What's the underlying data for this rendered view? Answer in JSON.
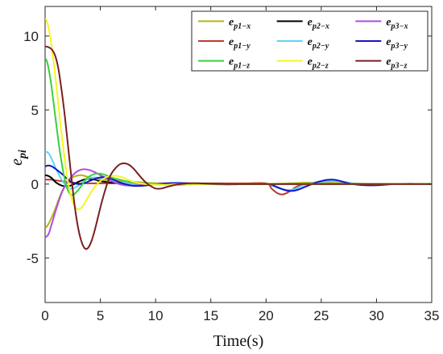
{
  "chart_data": {
    "type": "line",
    "title": "",
    "xlabel": "Time(s)",
    "ylabel": "e_pi",
    "ylabel_parts": {
      "base": "e",
      "sub": "pi"
    },
    "xlim": [
      0,
      35
    ],
    "ylim": [
      -8,
      12
    ],
    "xticks": [
      0,
      5,
      10,
      15,
      20,
      25,
      30,
      35
    ],
    "yticks": [
      -5,
      0,
      5,
      10
    ],
    "grid": false,
    "legend_position": "top-right",
    "legend_columns": 3,
    "series": [
      {
        "name": "e_p1-x",
        "label_base": "e",
        "label_sub": "p1−x",
        "color": "#b5b50f",
        "x": [
          0,
          0.3,
          0.8,
          1.3,
          1.8,
          2.3,
          2.8,
          3.3,
          3.8,
          4.3,
          5,
          6,
          7,
          8,
          9,
          10,
          11,
          12,
          13,
          15,
          18,
          20,
          21,
          22,
          23,
          24,
          25,
          26,
          27,
          28,
          30,
          32,
          35
        ],
        "y": [
          -3.0,
          -2.7,
          -1.9,
          -0.9,
          -0.1,
          0.35,
          0.55,
          0.6,
          0.5,
          0.4,
          0.3,
          0.25,
          0.2,
          0.15,
          0.1,
          0.05,
          0.03,
          0.02,
          0.01,
          0,
          0,
          0,
          0.02,
          0.05,
          0.08,
          0.1,
          0.1,
          0.08,
          0.05,
          0.03,
          0.01,
          0,
          0
        ]
      },
      {
        "name": "e_p1-y",
        "label_base": "e",
        "label_sub": "p1−y",
        "color": "#c0392b",
        "x": [
          0,
          0.5,
          1,
          1.5,
          2,
          2.5,
          3,
          3.5,
          4,
          5,
          6,
          7,
          8,
          9,
          10,
          12,
          15,
          18,
          20,
          20.5,
          21,
          21.5,
          22,
          22.5,
          23,
          24,
          25,
          26,
          27,
          28,
          30,
          32,
          35
        ],
        "y": [
          0.3,
          0.3,
          0.25,
          0.2,
          0.15,
          0.1,
          0.05,
          0.05,
          0.05,
          0.05,
          0.05,
          0.05,
          0.05,
          0.05,
          0.05,
          0.05,
          0.05,
          0.05,
          0.05,
          -0.3,
          -0.6,
          -0.7,
          -0.55,
          -0.3,
          -0.1,
          0.05,
          0.1,
          0.08,
          0.05,
          0.02,
          0,
          0,
          0
        ]
      },
      {
        "name": "e_p1-z",
        "label_base": "e",
        "label_sub": "p1−z",
        "color": "#3ccf3c",
        "x": [
          0,
          0.2,
          0.5,
          0.8,
          1.1,
          1.4,
          1.7,
          2,
          2.3,
          2.6,
          3,
          3.4,
          3.8,
          4.2,
          4.6,
          5,
          5.5,
          6,
          6.5,
          7,
          8,
          9,
          10,
          11,
          12,
          13,
          15,
          18,
          20,
          22,
          25,
          30,
          35
        ],
        "y": [
          8.5,
          8.2,
          7.0,
          5.3,
          3.5,
          1.9,
          0.6,
          -0.3,
          -0.7,
          -0.7,
          -0.4,
          0.0,
          0.4,
          0.6,
          0.7,
          0.7,
          0.6,
          0.45,
          0.35,
          0.25,
          0.1,
          0.05,
          0.0,
          -0.05,
          -0.05,
          -0.02,
          0,
          0,
          0,
          0,
          0,
          0,
          0
        ]
      },
      {
        "name": "e_p2-x",
        "label_base": "e",
        "label_sub": "p2−x",
        "color": "#000000",
        "x": [
          0,
          0.3,
          0.6,
          1,
          1.5,
          2,
          2.5,
          3,
          3.5,
          4,
          4.5,
          5,
          6,
          7,
          8,
          9,
          10,
          12,
          15,
          20,
          25,
          30,
          35
        ],
        "y": [
          0.6,
          0.55,
          0.4,
          0.1,
          -0.1,
          -0.15,
          -0.05,
          0.15,
          0.3,
          0.35,
          0.3,
          0.2,
          0.1,
          0.05,
          0,
          -0.03,
          -0.03,
          0,
          0,
          0,
          0,
          0,
          0
        ]
      },
      {
        "name": "e_p2-y",
        "label_base": "e",
        "label_sub": "p2−y",
        "color": "#5cd6f5",
        "x": [
          0,
          0.3,
          0.6,
          1,
          1.5,
          2,
          2.5,
          3,
          3.5,
          4,
          4.5,
          5,
          6,
          7,
          8,
          9,
          10,
          12,
          15,
          18,
          20,
          20.5,
          21,
          21.5,
          22,
          22.5,
          23,
          23.5,
          24,
          25,
          26,
          27,
          28,
          29,
          30,
          32,
          35
        ],
        "y": [
          2.2,
          2.1,
          1.7,
          1.0,
          0.3,
          -0.2,
          -0.3,
          -0.1,
          0.2,
          0.4,
          0.45,
          0.4,
          0.25,
          0.1,
          0,
          -0.05,
          -0.03,
          0,
          0,
          0,
          0,
          -0.1,
          -0.25,
          -0.35,
          -0.4,
          -0.35,
          -0.2,
          -0.05,
          0.05,
          0.15,
          0.2,
          0.15,
          0.05,
          0,
          -0.03,
          0,
          0
        ]
      },
      {
        "name": "e_p2-z",
        "label_base": "e",
        "label_sub": "p2−z",
        "color": "#f5f51f",
        "x": [
          0,
          0.2,
          0.5,
          0.8,
          1.1,
          1.4,
          1.7,
          2,
          2.3,
          2.6,
          3,
          3.4,
          3.8,
          4.2,
          4.6,
          5,
          5.5,
          6,
          6.5,
          7,
          7.5,
          8,
          9,
          10,
          11,
          12,
          13,
          15,
          18,
          20,
          25,
          30,
          35
        ],
        "y": [
          11.2,
          10.9,
          9.8,
          8.1,
          6.1,
          4.0,
          2.1,
          0.5,
          -0.7,
          -1.4,
          -1.7,
          -1.5,
          -1.0,
          -0.5,
          -0.1,
          0.2,
          0.45,
          0.55,
          0.55,
          0.45,
          0.3,
          0.15,
          0.0,
          -0.05,
          -0.05,
          0,
          0,
          0,
          0,
          0,
          0,
          0,
          0
        ]
      },
      {
        "name": "e_p3-x",
        "label_base": "e",
        "label_sub": "p3−x",
        "color": "#b44be0",
        "x": [
          0,
          0.3,
          0.6,
          1,
          1.5,
          2,
          2.5,
          3,
          3.5,
          4,
          4.5,
          5,
          5.5,
          6,
          6.5,
          7,
          7.5,
          8,
          9,
          10,
          11,
          12,
          13,
          15,
          18,
          20,
          22,
          25,
          30,
          35
        ],
        "y": [
          -3.6,
          -3.4,
          -2.7,
          -1.7,
          -0.6,
          0.1,
          0.6,
          0.9,
          1.0,
          0.95,
          0.8,
          0.6,
          0.4,
          0.2,
          0.05,
          -0.05,
          -0.1,
          -0.1,
          -0.05,
          0,
          0.03,
          0.03,
          0.01,
          0,
          0,
          0,
          0,
          0,
          0,
          0
        ]
      },
      {
        "name": "e_p3-y",
        "label_base": "e",
        "label_sub": "p3−y",
        "color": "#1515c8",
        "x": [
          0,
          0.3,
          0.6,
          1,
          1.5,
          2,
          2.5,
          3,
          3.5,
          4,
          4.5,
          5,
          5.5,
          6,
          6.5,
          7,
          8,
          9,
          10,
          11,
          12,
          13,
          14,
          15,
          16,
          17,
          18,
          19,
          20,
          20.5,
          21,
          21.5,
          22,
          22.5,
          23,
          23.5,
          24,
          24.5,
          25,
          25.5,
          26,
          26.5,
          27,
          27.5,
          28,
          29,
          30,
          31,
          32,
          33,
          34,
          35
        ],
        "y": [
          1.2,
          1.25,
          1.2,
          1.0,
          0.7,
          0.35,
          0.1,
          0.0,
          0.05,
          0.2,
          0.35,
          0.45,
          0.45,
          0.35,
          0.2,
          0.05,
          -0.12,
          -0.1,
          -0.02,
          0.05,
          0.08,
          0.05,
          0.02,
          0.0,
          -0.02,
          -0.02,
          0,
          0,
          0,
          -0.05,
          -0.2,
          -0.35,
          -0.45,
          -0.45,
          -0.35,
          -0.2,
          -0.05,
          0.1,
          0.2,
          0.28,
          0.3,
          0.25,
          0.15,
          0.05,
          -0.02,
          -0.08,
          -0.08,
          -0.03,
          0,
          0.02,
          0.01,
          0
        ]
      },
      {
        "name": "e_p3-z",
        "label_base": "e",
        "label_sub": "p3−z",
        "color": "#7a1f1f",
        "x": [
          0,
          0.3,
          0.6,
          0.9,
          1.2,
          1.5,
          1.8,
          2.1,
          2.4,
          2.7,
          3.0,
          3.3,
          3.6,
          3.9,
          4.2,
          4.5,
          4.8,
          5.1,
          5.4,
          5.7,
          6.0,
          6.4,
          6.8,
          7.2,
          7.6,
          8.0,
          8.4,
          8.8,
          9.2,
          9.6,
          10,
          10.5,
          11,
          11.5,
          12,
          12.5,
          13,
          14,
          15,
          17,
          20,
          25,
          30,
          35
        ],
        "y": [
          9.3,
          9.25,
          9.1,
          8.7,
          7.8,
          6.3,
          4.5,
          2.4,
          0.3,
          -1.6,
          -3.0,
          -3.9,
          -4.35,
          -4.3,
          -3.85,
          -3.1,
          -2.2,
          -1.3,
          -0.5,
          0.2,
          0.7,
          1.1,
          1.35,
          1.4,
          1.3,
          1.05,
          0.7,
          0.35,
          0.05,
          -0.15,
          -0.3,
          -0.3,
          -0.2,
          -0.1,
          -0.02,
          0.02,
          0.05,
          0.05,
          0.02,
          0,
          0,
          0,
          0,
          0
        ]
      }
    ]
  }
}
